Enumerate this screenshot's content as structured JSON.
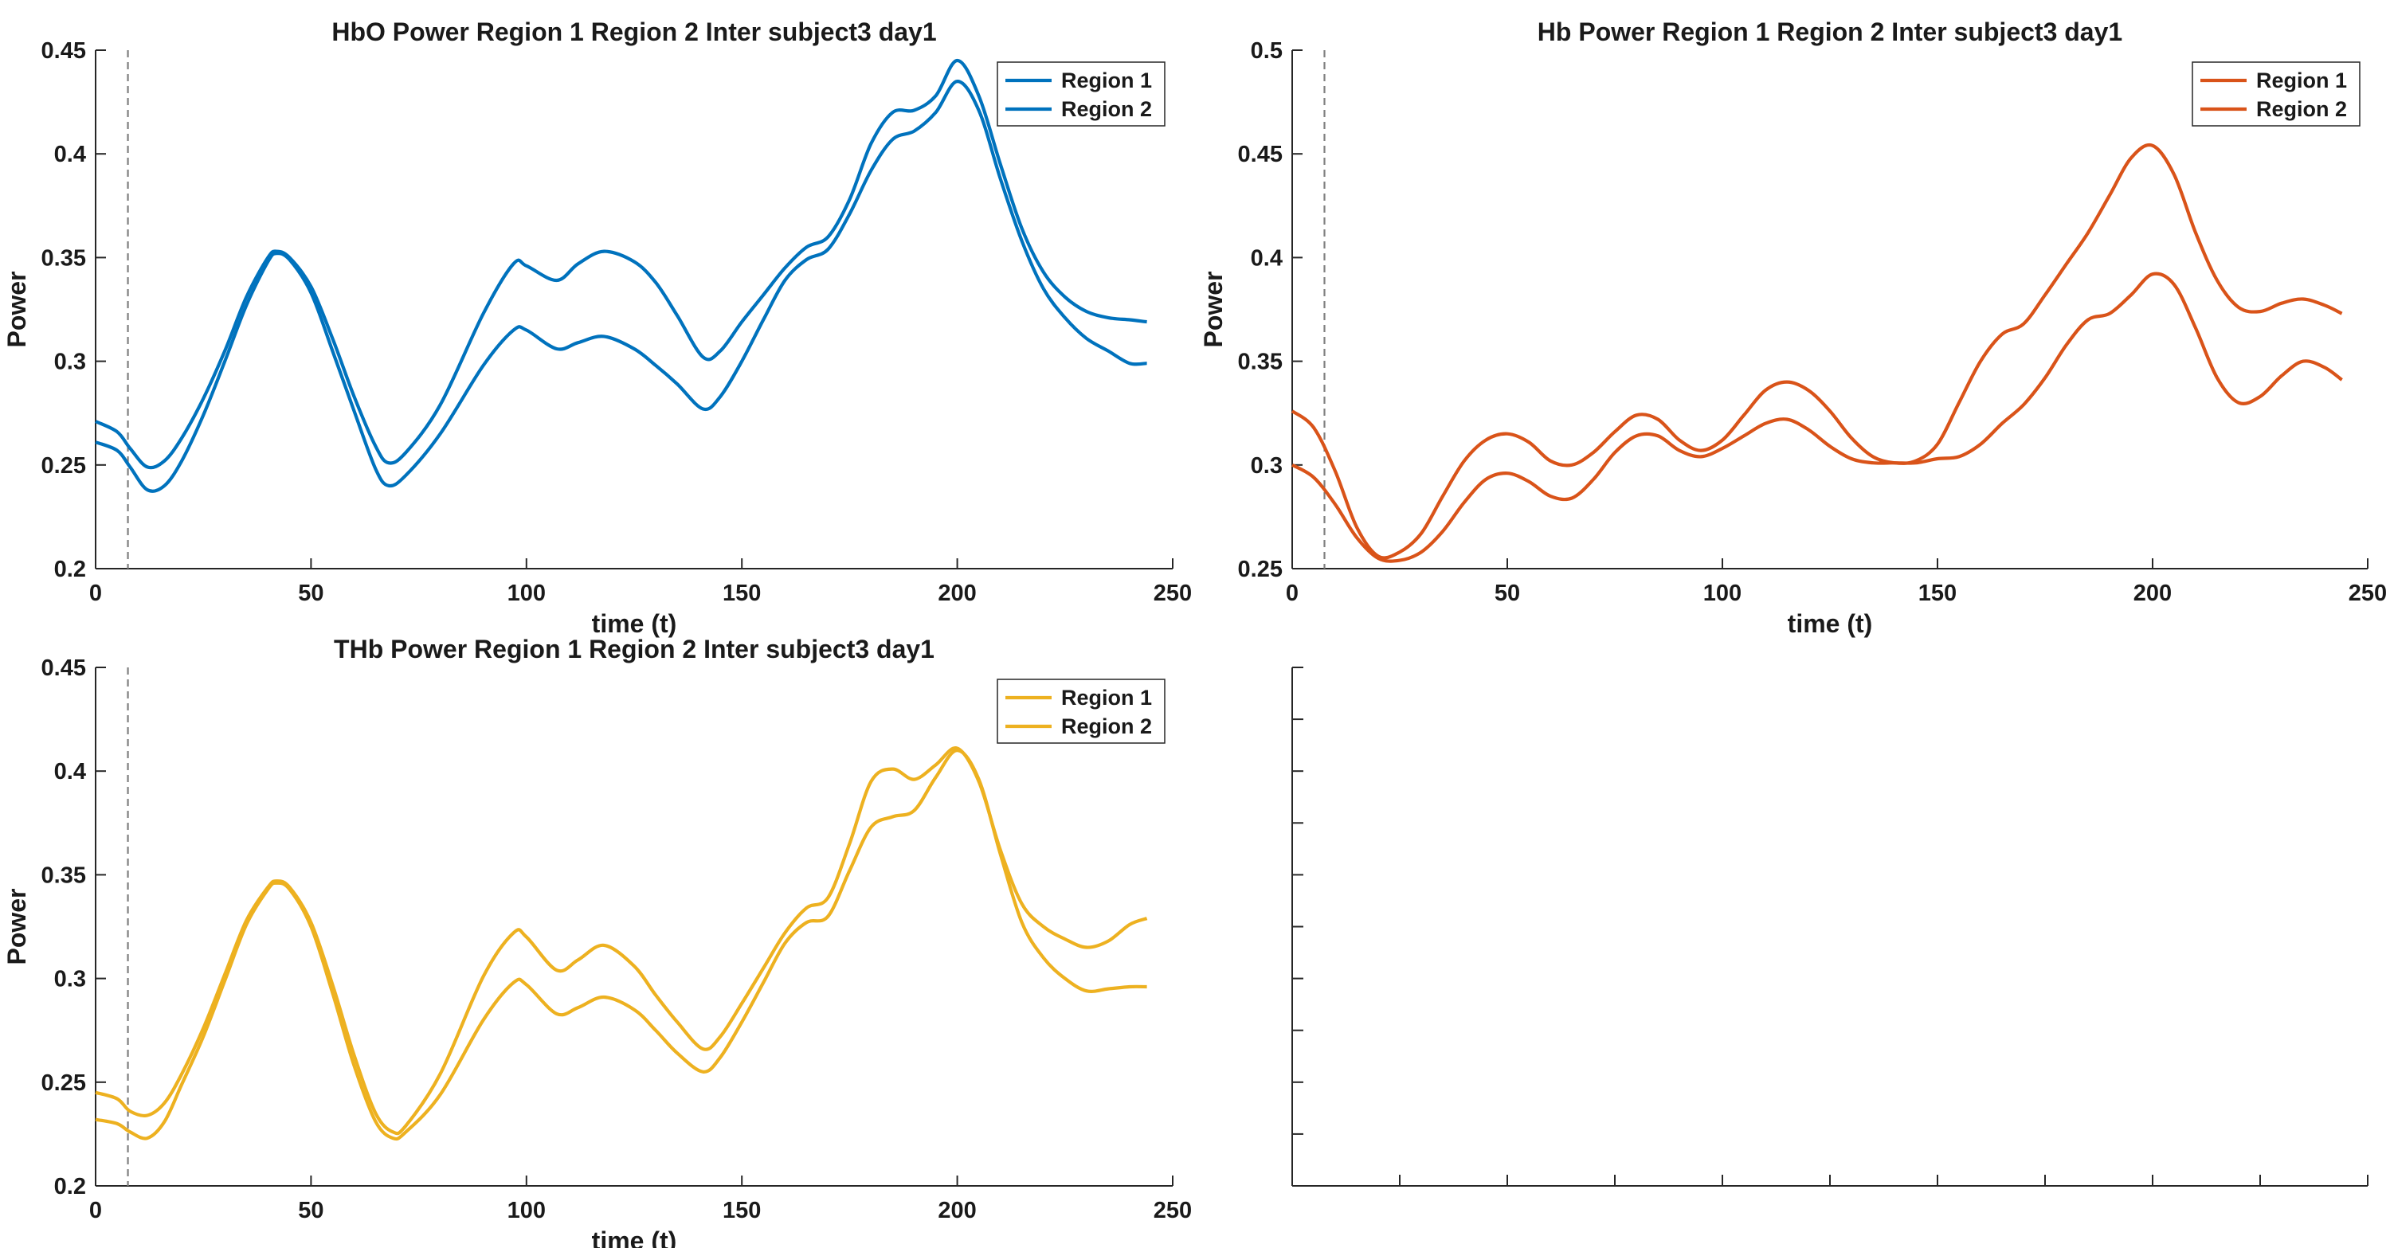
{
  "figure": {
    "panels": [
      {
        "id": "hbo"
      },
      {
        "id": "hb"
      },
      {
        "id": "thb"
      },
      {
        "id": "empty"
      }
    ]
  },
  "chart_data": [
    {
      "type": "line",
      "title": "HbO Power Region 1 Region 2 Inter subject3 day1",
      "xlabel": "time (t)",
      "ylabel": "Power",
      "xlim": [
        0,
        250
      ],
      "ylim": [
        0.2,
        0.45
      ],
      "xticks": [
        0,
        50,
        100,
        150,
        200,
        250
      ],
      "yticks": [
        0.2,
        0.25,
        0.3,
        0.35,
        0.4,
        0.45
      ],
      "tick_labels_x": [
        "0",
        "50",
        "100",
        "150",
        "200",
        "250"
      ],
      "tick_labels_y": [
        "0.2",
        "0.25",
        "0.3",
        "0.35",
        "0.4",
        "0.45"
      ],
      "vline_x": 7.5,
      "legend_position": "top-right",
      "color": "#0072BD",
      "x": [
        0,
        5,
        8,
        12,
        16,
        20,
        25,
        30,
        35,
        40,
        42,
        45,
        50,
        55,
        60,
        65,
        68,
        72,
        80,
        90,
        97,
        100,
        107,
        112,
        118,
        125,
        130,
        135,
        141,
        145,
        150,
        155,
        160,
        165,
        170,
        175,
        180,
        185,
        190,
        195,
        200,
        205,
        210,
        215,
        220,
        225,
        230,
        235,
        240,
        244
      ],
      "series": [
        {
          "name": "Region 1",
          "values": [
            0.271,
            0.266,
            0.258,
            0.249,
            0.252,
            0.263,
            0.282,
            0.305,
            0.331,
            0.35,
            0.353,
            0.35,
            0.336,
            0.311,
            0.283,
            0.259,
            0.251,
            0.256,
            0.279,
            0.323,
            0.347,
            0.346,
            0.339,
            0.347,
            0.353,
            0.348,
            0.338,
            0.322,
            0.302,
            0.305,
            0.319,
            0.332,
            0.345,
            0.355,
            0.36,
            0.378,
            0.405,
            0.42,
            0.421,
            0.428,
            0.445,
            0.428,
            0.395,
            0.364,
            0.343,
            0.331,
            0.324,
            0.321,
            0.32,
            0.319
          ]
        },
        {
          "name": "Region 2",
          "values": [
            0.261,
            0.257,
            0.249,
            0.238,
            0.24,
            0.252,
            0.274,
            0.3,
            0.327,
            0.348,
            0.352,
            0.349,
            0.333,
            0.305,
            0.276,
            0.248,
            0.24,
            0.245,
            0.265,
            0.298,
            0.315,
            0.315,
            0.306,
            0.309,
            0.312,
            0.306,
            0.298,
            0.289,
            0.277,
            0.283,
            0.3,
            0.32,
            0.339,
            0.349,
            0.354,
            0.371,
            0.392,
            0.407,
            0.411,
            0.42,
            0.435,
            0.421,
            0.388,
            0.358,
            0.335,
            0.321,
            0.311,
            0.305,
            0.299,
            0.299
          ]
        }
      ]
    },
    {
      "type": "line",
      "title": "Hb Power Region 1 Region 2 Inter subject3 day1",
      "xlabel": "time (t)",
      "ylabel": "Power",
      "xlim": [
        0,
        250
      ],
      "ylim": [
        0.25,
        0.5
      ],
      "xticks": [
        0,
        50,
        100,
        150,
        200,
        250
      ],
      "yticks": [
        0.25,
        0.3,
        0.35,
        0.4,
        0.45,
        0.5
      ],
      "tick_labels_x": [
        "0",
        "50",
        "100",
        "150",
        "200",
        "250"
      ],
      "tick_labels_y": [
        "0.25",
        "0.3",
        "0.35",
        "0.4",
        "0.45",
        "0.5"
      ],
      "vline_x": 7.5,
      "legend_position": "top-right",
      "color": "#D95319",
      "x": [
        0,
        5,
        10,
        15,
        20,
        25,
        30,
        35,
        40,
        45,
        50,
        55,
        60,
        65,
        70,
        75,
        80,
        85,
        90,
        95,
        100,
        105,
        110,
        115,
        120,
        125,
        130,
        135,
        140,
        145,
        150,
        155,
        160,
        165,
        170,
        175,
        180,
        185,
        190,
        195,
        200,
        205,
        210,
        215,
        220,
        225,
        230,
        235,
        240,
        244
      ],
      "series": [
        {
          "name": "Region 1",
          "values": [
            0.326,
            0.318,
            0.297,
            0.27,
            0.256,
            0.258,
            0.267,
            0.285,
            0.302,
            0.312,
            0.315,
            0.311,
            0.302,
            0.3,
            0.306,
            0.316,
            0.324,
            0.322,
            0.312,
            0.307,
            0.312,
            0.324,
            0.336,
            0.34,
            0.336,
            0.326,
            0.313,
            0.304,
            0.301,
            0.302,
            0.31,
            0.33,
            0.35,
            0.363,
            0.368,
            0.382,
            0.397,
            0.412,
            0.43,
            0.448,
            0.454,
            0.44,
            0.412,
            0.389,
            0.376,
            0.374,
            0.378,
            0.38,
            0.377,
            0.373
          ]
        },
        {
          "name": "Region 2",
          "values": [
            0.3,
            0.294,
            0.281,
            0.265,
            0.255,
            0.254,
            0.258,
            0.268,
            0.282,
            0.293,
            0.296,
            0.292,
            0.285,
            0.284,
            0.293,
            0.306,
            0.314,
            0.314,
            0.307,
            0.304,
            0.308,
            0.314,
            0.32,
            0.322,
            0.317,
            0.309,
            0.303,
            0.301,
            0.301,
            0.301,
            0.303,
            0.304,
            0.31,
            0.32,
            0.329,
            0.342,
            0.358,
            0.37,
            0.373,
            0.382,
            0.392,
            0.387,
            0.366,
            0.342,
            0.33,
            0.333,
            0.343,
            0.35,
            0.347,
            0.341
          ]
        }
      ]
    },
    {
      "type": "line",
      "title": "THb Power Region 1 Region 2 Inter subject3 day1",
      "xlabel": "time (t)",
      "ylabel": "Power",
      "xlim": [
        0,
        250
      ],
      "ylim": [
        0.2,
        0.45
      ],
      "xticks": [
        0,
        50,
        100,
        150,
        200,
        250
      ],
      "yticks": [
        0.2,
        0.25,
        0.3,
        0.35,
        0.4,
        0.45
      ],
      "tick_labels_x": [
        "0",
        "50",
        "100",
        "150",
        "200",
        "250"
      ],
      "tick_labels_y": [
        "0.2",
        "0.25",
        "0.3",
        "0.35",
        "0.4",
        "0.45"
      ],
      "vline_x": 7.5,
      "legend_position": "top-right",
      "color": "#EDB120",
      "x": [
        0,
        5,
        8,
        12,
        16,
        20,
        25,
        30,
        35,
        40,
        42,
        45,
        50,
        55,
        60,
        65,
        69,
        72,
        80,
        90,
        97,
        100,
        107,
        112,
        118,
        125,
        130,
        135,
        141,
        145,
        150,
        155,
        160,
        165,
        170,
        175,
        180,
        185,
        190,
        195,
        200,
        205,
        210,
        215,
        220,
        225,
        230,
        235,
        240,
        244
      ],
      "series": [
        {
          "name": "Region 1",
          "values": [
            0.245,
            0.242,
            0.236,
            0.234,
            0.24,
            0.254,
            0.276,
            0.302,
            0.328,
            0.344,
            0.347,
            0.344,
            0.327,
            0.297,
            0.263,
            0.235,
            0.226,
            0.229,
            0.254,
            0.301,
            0.322,
            0.32,
            0.304,
            0.309,
            0.316,
            0.306,
            0.292,
            0.279,
            0.266,
            0.272,
            0.288,
            0.305,
            0.322,
            0.334,
            0.339,
            0.365,
            0.395,
            0.401,
            0.396,
            0.403,
            0.411,
            0.395,
            0.362,
            0.336,
            0.325,
            0.319,
            0.315,
            0.318,
            0.326,
            0.329
          ]
        },
        {
          "name": "Region 2",
          "values": [
            0.232,
            0.23,
            0.226,
            0.223,
            0.231,
            0.249,
            0.272,
            0.299,
            0.326,
            0.343,
            0.346,
            0.343,
            0.325,
            0.293,
            0.258,
            0.231,
            0.223,
            0.226,
            0.244,
            0.28,
            0.298,
            0.297,
            0.283,
            0.286,
            0.291,
            0.285,
            0.275,
            0.264,
            0.255,
            0.262,
            0.279,
            0.298,
            0.317,
            0.327,
            0.33,
            0.352,
            0.373,
            0.378,
            0.381,
            0.397,
            0.41,
            0.396,
            0.36,
            0.327,
            0.31,
            0.3,
            0.294,
            0.295,
            0.296,
            0.296
          ]
        }
      ]
    },
    {
      "type": "line",
      "title": "",
      "empty": true
    }
  ]
}
